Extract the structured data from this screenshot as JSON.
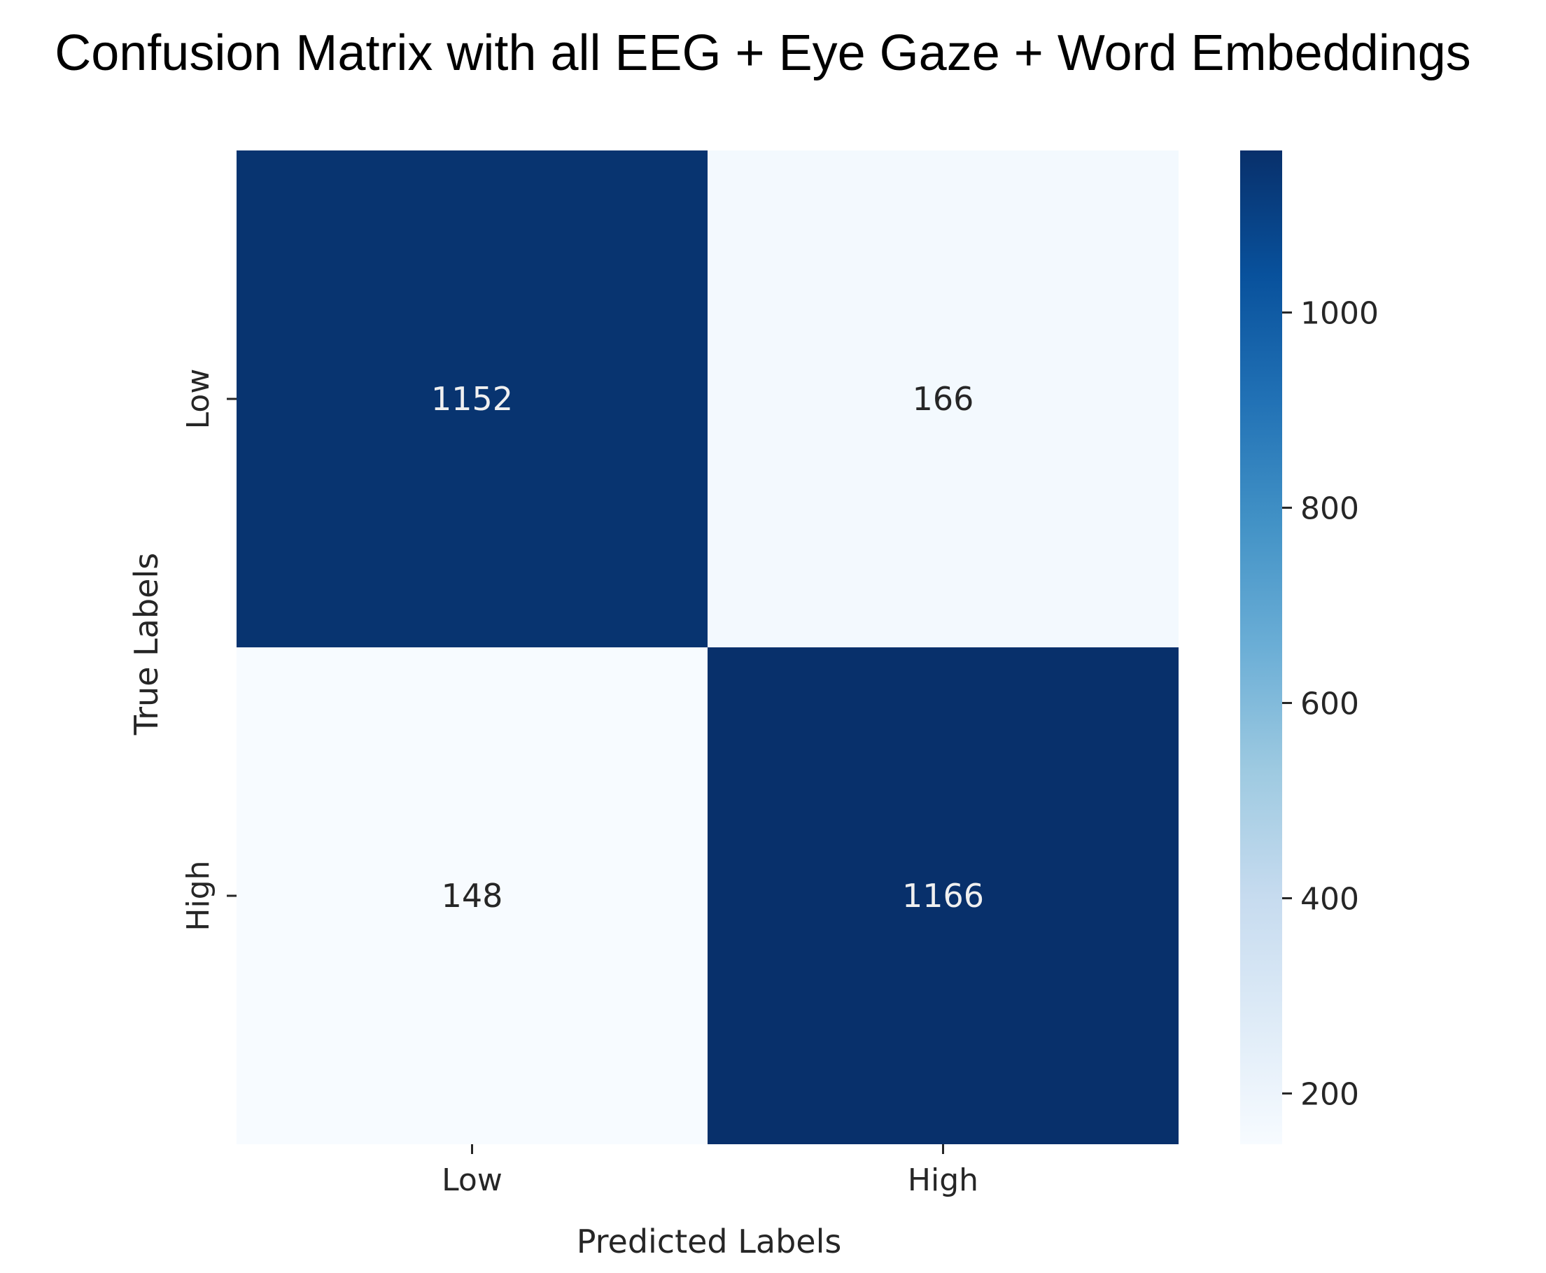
{
  "chart_data": {
    "type": "heatmap",
    "title": "Confusion Matrix with all EEG + Eye Gaze + Word Embeddings",
    "xlabel": "Predicted Labels",
    "ylabel": "True Labels",
    "x_categories": [
      "Low",
      "High"
    ],
    "y_categories": [
      "Low",
      "High"
    ],
    "values": [
      [
        1152,
        166
      ],
      [
        148,
        1166
      ]
    ],
    "colormap": "Blues",
    "colorbar": {
      "range": [
        148,
        1166
      ],
      "ticks": [
        200,
        400,
        600,
        800,
        1000
      ],
      "tick_labels": [
        "200",
        "400",
        "600",
        "800",
        "1000"
      ],
      "colors": [
        "#f7fbff",
        "#deebf7",
        "#c6dbef",
        "#9ecae1",
        "#6baed6",
        "#4292c6",
        "#2171b5",
        "#08519c",
        "#08306b"
      ]
    },
    "text_colors": {
      "dark": "#262626",
      "light": "#f0f0f0"
    },
    "grid": false
  }
}
